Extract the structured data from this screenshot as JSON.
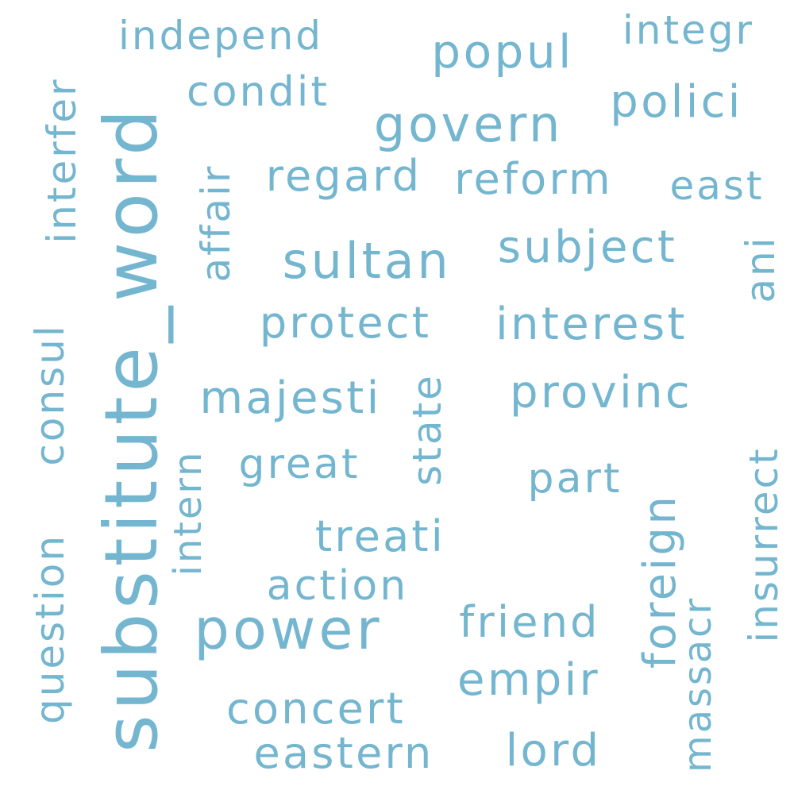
{
  "word_cloud": {
    "color": "#74b6cf",
    "words": [
      {
        "text": "substitute_word",
        "rotated": true
      },
      {
        "text": "power",
        "rotated": false
      },
      {
        "text": "sultan",
        "rotated": false
      },
      {
        "text": "govern",
        "rotated": false
      },
      {
        "text": "popul",
        "rotated": false
      },
      {
        "text": "subject",
        "rotated": false
      },
      {
        "text": "interest",
        "rotated": false
      },
      {
        "text": "provinc",
        "rotated": false
      },
      {
        "text": "polici",
        "rotated": false
      },
      {
        "text": "reform",
        "rotated": false
      },
      {
        "text": "regard",
        "rotated": false
      },
      {
        "text": "protect",
        "rotated": false
      },
      {
        "text": "majesti",
        "rotated": false
      },
      {
        "text": "empir",
        "rotated": false
      },
      {
        "text": "concert",
        "rotated": false
      },
      {
        "text": "eastern",
        "rotated": false
      },
      {
        "text": "lord",
        "rotated": false
      },
      {
        "text": "friend",
        "rotated": false
      },
      {
        "text": "treati",
        "rotated": false
      },
      {
        "text": "action",
        "rotated": false
      },
      {
        "text": "great",
        "rotated": false
      },
      {
        "text": "part",
        "rotated": false
      },
      {
        "text": "condit",
        "rotated": false
      },
      {
        "text": "independ",
        "rotated": false
      },
      {
        "text": "integr",
        "rotated": false
      },
      {
        "text": "east",
        "rotated": false
      },
      {
        "text": "interfer",
        "rotated": true
      },
      {
        "text": "affair",
        "rotated": true
      },
      {
        "text": "consul",
        "rotated": true
      },
      {
        "text": "question",
        "rotated": true
      },
      {
        "text": "intern",
        "rotated": true
      },
      {
        "text": "state",
        "rotated": true
      },
      {
        "text": "foreign",
        "rotated": true
      },
      {
        "text": "massacr",
        "rotated": true
      },
      {
        "text": "insurrect",
        "rotated": true
      },
      {
        "text": "ani",
        "rotated": true
      }
    ]
  }
}
